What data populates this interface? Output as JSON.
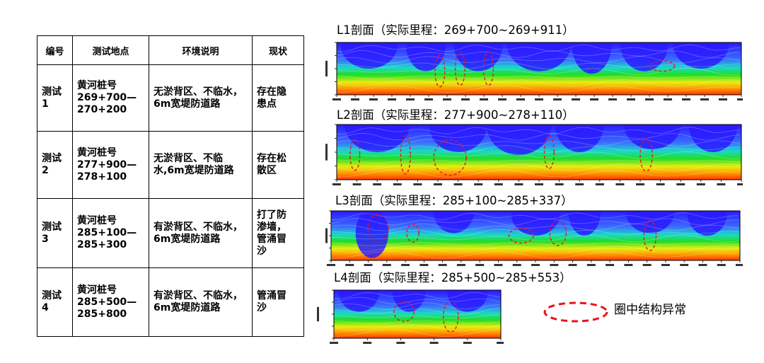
{
  "table": {
    "headers": [
      "编号",
      "测试地点",
      "环境说明",
      "现状"
    ],
    "rows": [
      {
        "id": [
          "测试",
          "1"
        ],
        "location": [
          "黄河桩号",
          "269+700—",
          "270+200"
        ],
        "env": [
          "无淤背区、不临水，",
          "6m宽堤防道路"
        ],
        "status": [
          "存在隐",
          "患点"
        ]
      },
      {
        "id": [
          "测试",
          "2"
        ],
        "location": [
          "黄河桩号",
          "277+900—",
          "278+100"
        ],
        "env": [
          "无淤背区、不临",
          "水,6m宽堤防道路"
        ],
        "status": [
          "存在松",
          "散区"
        ]
      },
      {
        "id": [
          "测试",
          "3"
        ],
        "location": [
          "黄河桩号",
          "285+100—",
          "285+300"
        ],
        "env": [
          "有淤背区、不临水，",
          "6m宽堤防道路"
        ],
        "status": [
          "打了防",
          "渗墙，",
          "管涌冒",
          "沙"
        ]
      },
      {
        "id": [
          "测试",
          "4"
        ],
        "location": [
          "黄河桩号",
          "285+500—",
          "285+800"
        ],
        "env": [
          "有淤背区、不临水，",
          "6m宽堤防道路"
        ],
        "status": [
          "管涌冒",
          "沙"
        ]
      }
    ]
  },
  "profiles": [
    {
      "title": "L1剖面（实际里程：269+700~269+911）"
    },
    {
      "title": "L2剖面（实际里程：277+900~278+110）"
    },
    {
      "title": "L3剖面（实际里程：285+100~285+337）"
    },
    {
      "title": "L4剖面（实际里程：285+500~285+553）"
    }
  ],
  "legend": {
    "label": "圈中结构异常",
    "color": "#e8141b"
  },
  "colors": {
    "low": "#2a1aff",
    "mid": "#22dd22",
    "high": "#ff3300",
    "anomaly": "#e8141b"
  }
}
